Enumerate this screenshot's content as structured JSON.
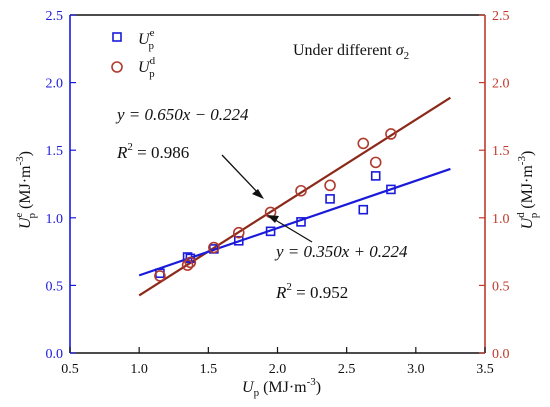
{
  "chart_data": {
    "type": "scatter",
    "annotation_text": "Under different σ2",
    "axes": {
      "x": {
        "label": "Up (MJ·m-3)",
        "lim": [
          0.5,
          3.5
        ],
        "ticks": [
          "0.5",
          "1.0",
          "1.5",
          "2.0",
          "2.5",
          "3.0",
          "3.5"
        ]
      },
      "y_left": {
        "label": "Uep (MJ·m-3)",
        "lim": [
          0.0,
          2.5
        ],
        "ticks": [
          "0.0",
          "0.5",
          "1.0",
          "1.5",
          "2.0",
          "2.5"
        ],
        "color": "#1a1adb"
      },
      "y_right": {
        "label": "Udp (MJ·m-3)",
        "lim": [
          0.0,
          2.5
        ],
        "ticks": [
          "0.0",
          "0.5",
          "1.0",
          "1.5",
          "2.0",
          "2.5"
        ],
        "color": "#c0392b"
      }
    },
    "grid": false,
    "legend": {
      "placement": "top-left",
      "entries": [
        {
          "label": "Uep",
          "marker": "square",
          "color": "#1a1adb"
        },
        {
          "label": "Udp",
          "marker": "circle",
          "color": "#b03a2e"
        }
      ]
    },
    "series": [
      {
        "name": "Uep",
        "marker": "square",
        "color": "#1a1adb",
        "x": [
          1.15,
          1.35,
          1.37,
          1.54,
          1.72,
          1.95,
          2.17,
          2.38,
          2.62,
          2.71,
          2.82
        ],
        "y": [
          0.59,
          0.71,
          0.7,
          0.77,
          0.83,
          0.9,
          0.97,
          1.14,
          1.06,
          1.31,
          1.21
        ]
      },
      {
        "name": "Udp",
        "marker": "circle",
        "color": "#b03a2e",
        "x": [
          1.15,
          1.35,
          1.37,
          1.54,
          1.72,
          1.95,
          2.17,
          2.38,
          2.62,
          2.71,
          2.82
        ],
        "y": [
          0.57,
          0.65,
          0.67,
          0.78,
          0.89,
          1.04,
          1.2,
          1.24,
          1.55,
          1.41,
          1.62
        ]
      }
    ],
    "fits": [
      {
        "series": "Udp",
        "slope": 0.65,
        "intercept": -0.224,
        "x_range": [
          1.0,
          3.25
        ],
        "color": "#8b2a1a",
        "equation": "y = 0.650x − 0.224",
        "r2": "R2 = 0.986"
      },
      {
        "series": "Uep",
        "slope": 0.35,
        "intercept": 0.224,
        "x_range": [
          1.0,
          3.25
        ],
        "color": "#1a1adb",
        "equation": "y = 0.350x + 0.224",
        "r2": "R2 = 0.952"
      }
    ]
  }
}
